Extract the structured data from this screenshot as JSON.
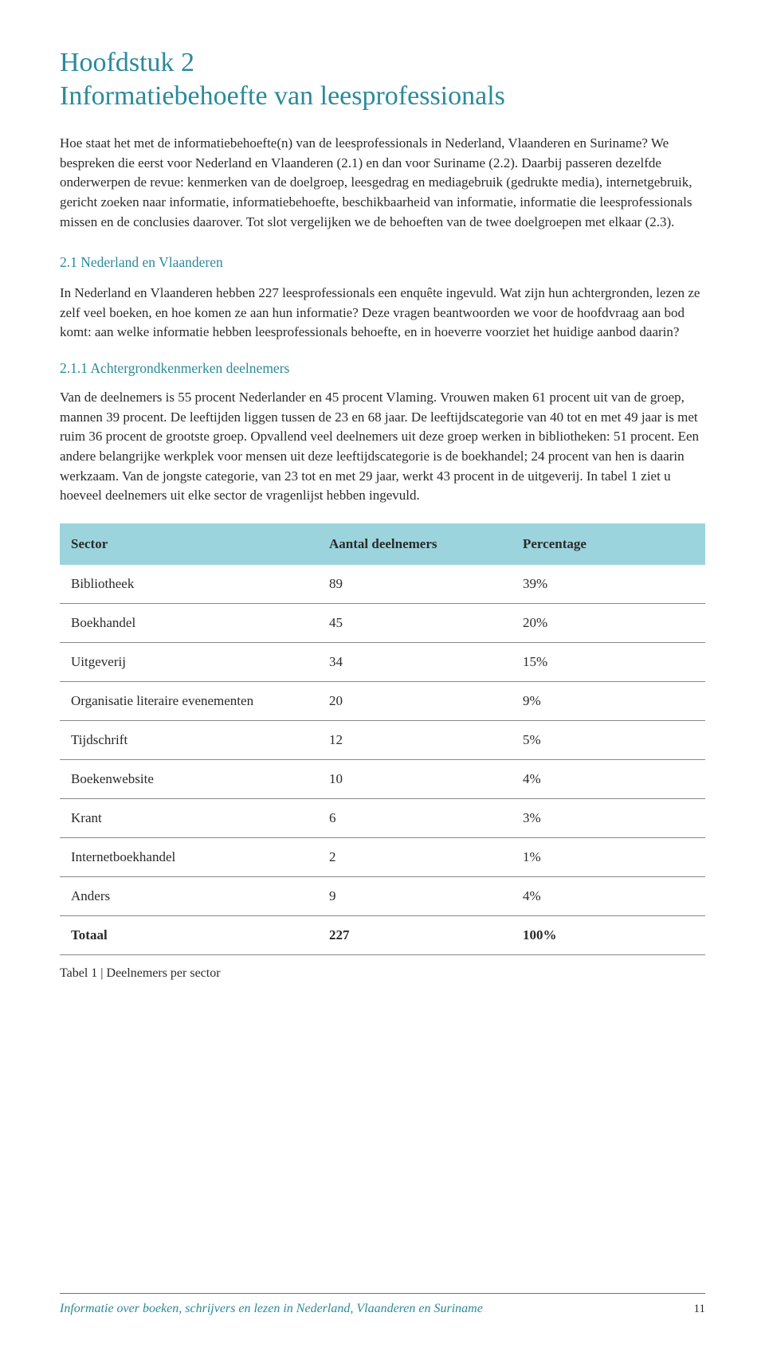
{
  "chapter": {
    "label": "Hoofdstuk 2",
    "title": "Informatiebehoefte van leesprofessionals"
  },
  "intro_paragraph": "Hoe staat het met de informatiebehoefte(n) van de leesprofessionals in Nederland, Vlaanderen en Suriname? We bespreken die eerst voor Nederland en Vlaanderen (2.1) en dan voor Suriname (2.2). Daarbij passeren dezelfde onderwerpen de revue: kenmerken van de doelgroep, leesgedrag en mediagebruik (gedrukte media), internetgebruik, gericht zoeken naar informatie, informatiebehoefte, beschikbaarheid van informatie, informatie die leesprofessionals missen en de conclusies daarover. Tot slot vergelijken we de behoeften van de twee doelgroepen met elkaar (2.3).",
  "section_2_1": {
    "heading": "2.1 Nederland en Vlaanderen",
    "body": "In Nederland en Vlaanderen hebben 227 leesprofessionals een enquête ingevuld. Wat zijn hun achtergronden, lezen ze zelf veel boeken, en hoe komen ze aan hun informatie? Deze vragen beantwoorden we voor de hoofdvraag aan bod komt: aan welke informatie hebben leesprofessionals behoefte, en in hoeverre voorziet het huidige aanbod daarin?"
  },
  "section_2_1_1": {
    "heading": "2.1.1 Achtergrondkenmerken deelnemers",
    "body": "Van de deelnemers is 55 procent Nederlander en 45 procent Vlaming. Vrouwen maken 61 procent uit van de groep, mannen 39 procent. De leeftijden liggen tussen de 23 en 68 jaar. De leeftijdscategorie van 40 tot en met 49 jaar is met ruim 36 procent de grootste groep. Opvallend veel deelnemers uit deze groep werken in bibliotheken: 51 procent. Een andere belangrijke werkplek voor mensen uit deze leeftijdscategorie is de boekhandel; 24 procent van hen is daarin werkzaam. Van de jongste categorie, van 23 tot en met 29 jaar, werkt 43 procent in de uitgeverij. In tabel 1 ziet u hoeveel deelnemers uit elke sector de vragenlijst hebben ingevuld."
  },
  "table": {
    "type": "table",
    "header_bg": "#9bd4dd",
    "border_color": "#888888",
    "columns": [
      "Sector",
      "Aantal deelnemers",
      "Percentage"
    ],
    "rows": [
      [
        "Bibliotheek",
        "89",
        "39%"
      ],
      [
        "Boekhandel",
        "45",
        "20%"
      ],
      [
        "Uitgeverij",
        "34",
        "15%"
      ],
      [
        "Organisatie literaire evenementen",
        "20",
        "9%"
      ],
      [
        "Tijdschrift",
        "12",
        "5%"
      ],
      [
        "Boekenwebsite",
        "10",
        "4%"
      ],
      [
        "Krant",
        "6",
        "3%"
      ],
      [
        "Internetboekhandel",
        "2",
        "1%"
      ],
      [
        "Anders",
        "9",
        "4%"
      ]
    ],
    "total_row": [
      "Totaal",
      "227",
      "100%"
    ],
    "caption": "Tabel 1 | Deelnemers per sector"
  },
  "footer": {
    "text": "Informatie over boeken, schrijvers en lezen in Nederland, Vlaanderen en Suriname",
    "page": "11"
  },
  "colors": {
    "heading": "#2a8a9a",
    "body_text": "#2a2a2a",
    "table_header_bg": "#9bd4dd",
    "footer_rule": "#2a8a9a"
  },
  "typography": {
    "chapter_fontsize": 34,
    "body_fontsize": 17,
    "section_fontsize": 17.5,
    "body_lineheight": 1.45,
    "font_family": "Georgia serif"
  }
}
